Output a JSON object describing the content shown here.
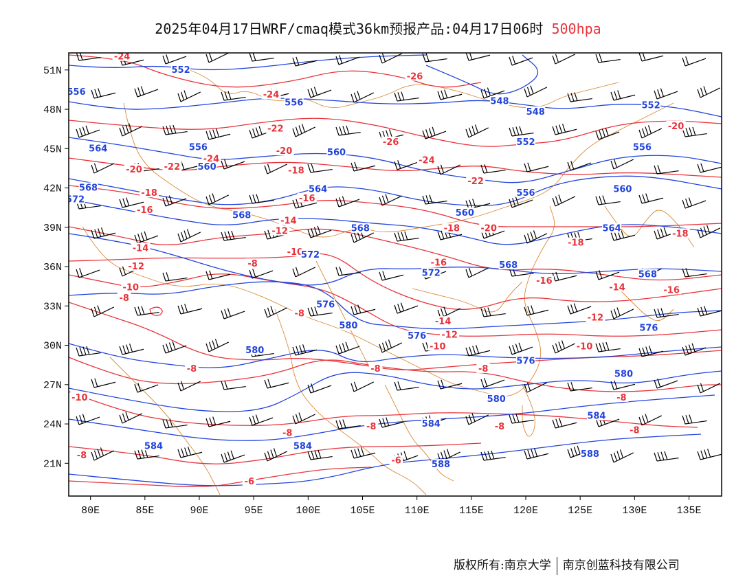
{
  "title": {
    "text": "2025年04月17日WRF/cmaq模式36km预报产品:04月17日06时",
    "level": "500hpa"
  },
  "axes": {
    "lat_ticks": [
      "51N",
      "48N",
      "45N",
      "42N",
      "39N",
      "36N",
      "33N",
      "30N",
      "27N",
      "24N",
      "21N"
    ],
    "lat_values": [
      51,
      48,
      45,
      42,
      39,
      36,
      33,
      30,
      27,
      24,
      21
    ],
    "lon_ticks": [
      "80E",
      "85E",
      "90E",
      "95E",
      "100E",
      "105E",
      "110E",
      "115E",
      "120E",
      "125E",
      "130E",
      "135E"
    ],
    "lon_values": [
      80,
      85,
      90,
      95,
      100,
      105,
      110,
      115,
      120,
      125,
      130,
      135
    ],
    "lon_range": [
      78,
      138
    ],
    "lat_range": [
      18.5,
      52.3
    ]
  },
  "colors": {
    "height_contour": "#2244dd",
    "temperature_contour": "#e8333a",
    "borders": "#d98b3a",
    "wind_barb": "#000000"
  },
  "height_labels": [
    {
      "text": "552",
      "lon": 88.3,
      "lat": 51.0
    },
    {
      "text": "556",
      "lon": 78.7,
      "lat": 49.3
    },
    {
      "text": "556",
      "lon": 98.7,
      "lat": 48.5
    },
    {
      "text": "548",
      "lon": 117.6,
      "lat": 48.6
    },
    {
      "text": "548",
      "lon": 120.9,
      "lat": 47.8
    },
    {
      "text": "552",
      "lon": 131.5,
      "lat": 48.3
    },
    {
      "text": "564",
      "lon": 80.7,
      "lat": 45.0
    },
    {
      "text": "556",
      "lon": 89.9,
      "lat": 45.1
    },
    {
      "text": "560",
      "lon": 102.6,
      "lat": 44.7
    },
    {
      "text": "552",
      "lon": 120.0,
      "lat": 45.5
    },
    {
      "text": "556",
      "lon": 130.7,
      "lat": 45.1
    },
    {
      "text": "560",
      "lon": 90.7,
      "lat": 43.6
    },
    {
      "text": "568",
      "lon": 79.8,
      "lat": 42.0
    },
    {
      "text": "564",
      "lon": 100.9,
      "lat": 41.9
    },
    {
      "text": "556",
      "lon": 120.0,
      "lat": 41.6
    },
    {
      "text": "560",
      "lon": 128.9,
      "lat": 41.9
    },
    {
      "text": "572",
      "lon": 78.6,
      "lat": 41.1
    },
    {
      "text": "568",
      "lon": 93.9,
      "lat": 39.9
    },
    {
      "text": "568",
      "lon": 104.8,
      "lat": 38.9
    },
    {
      "text": "560",
      "lon": 114.4,
      "lat": 40.1
    },
    {
      "text": "564",
      "lon": 127.9,
      "lat": 38.9
    },
    {
      "text": "572",
      "lon": 100.2,
      "lat": 36.9
    },
    {
      "text": "568",
      "lon": 118.4,
      "lat": 36.1
    },
    {
      "text": "568",
      "lon": 131.2,
      "lat": 35.4
    },
    {
      "text": "572",
      "lon": 111.3,
      "lat": 35.5
    },
    {
      "text": "576",
      "lon": 101.6,
      "lat": 33.1
    },
    {
      "text": "580",
      "lon": 103.7,
      "lat": 31.5
    },
    {
      "text": "576",
      "lon": 110.0,
      "lat": 30.7
    },
    {
      "text": "576",
      "lon": 131.3,
      "lat": 31.3
    },
    {
      "text": "580",
      "lon": 95.1,
      "lat": 29.6
    },
    {
      "text": "576",
      "lon": 120.0,
      "lat": 28.8
    },
    {
      "text": "580",
      "lon": 129.0,
      "lat": 27.8
    },
    {
      "text": "580",
      "lon": 117.3,
      "lat": 25.9
    },
    {
      "text": "584",
      "lon": 111.3,
      "lat": 24.0
    },
    {
      "text": "584",
      "lon": 126.5,
      "lat": 24.6
    },
    {
      "text": "584",
      "lon": 85.8,
      "lat": 22.3
    },
    {
      "text": "584",
      "lon": 99.5,
      "lat": 22.3
    },
    {
      "text": "588",
      "lon": 112.2,
      "lat": 20.9
    },
    {
      "text": "588",
      "lon": 125.9,
      "lat": 21.7
    }
  ],
  "temperature_labels": [
    {
      "text": "-24",
      "lon": 82.9,
      "lat": 52.0
    },
    {
      "text": "-26",
      "lon": 109.8,
      "lat": 50.5
    },
    {
      "text": "-24",
      "lon": 96.6,
      "lat": 49.1
    },
    {
      "text": "-22",
      "lon": 97.0,
      "lat": 46.5
    },
    {
      "text": "-20",
      "lon": 133.8,
      "lat": 46.7
    },
    {
      "text": "-26",
      "lon": 107.6,
      "lat": 45.5
    },
    {
      "text": "-20",
      "lon": 97.8,
      "lat": 44.8
    },
    {
      "text": "-24",
      "lon": 91.1,
      "lat": 44.2
    },
    {
      "text": "-22",
      "lon": 87.5,
      "lat": 43.6
    },
    {
      "text": "-20",
      "lon": 84.0,
      "lat": 43.4
    },
    {
      "text": "-24",
      "lon": 110.9,
      "lat": 44.1
    },
    {
      "text": "-18",
      "lon": 98.9,
      "lat": 43.3
    },
    {
      "text": "-22",
      "lon": 115.4,
      "lat": 42.5
    },
    {
      "text": "-18",
      "lon": 85.4,
      "lat": 41.6
    },
    {
      "text": "-16",
      "lon": 99.9,
      "lat": 41.2
    },
    {
      "text": "-16",
      "lon": 85.0,
      "lat": 40.3
    },
    {
      "text": "-14",
      "lon": 98.2,
      "lat": 39.5
    },
    {
      "text": "-12",
      "lon": 97.4,
      "lat": 38.7
    },
    {
      "text": "-18",
      "lon": 113.2,
      "lat": 38.9
    },
    {
      "text": "-20",
      "lon": 116.6,
      "lat": 38.9
    },
    {
      "text": "-18",
      "lon": 134.2,
      "lat": 38.5
    },
    {
      "text": "-14",
      "lon": 84.6,
      "lat": 37.4
    },
    {
      "text": "-10",
      "lon": 98.8,
      "lat": 37.1
    },
    {
      "text": "-18",
      "lon": 124.6,
      "lat": 37.8
    },
    {
      "text": "-12",
      "lon": 84.2,
      "lat": 36.0
    },
    {
      "text": "-8",
      "lon": 94.9,
      "lat": 36.2
    },
    {
      "text": "-16",
      "lon": 112.0,
      "lat": 36.3
    },
    {
      "text": "-16",
      "lon": 121.7,
      "lat": 34.9
    },
    {
      "text": "-14",
      "lon": 128.4,
      "lat": 34.4
    },
    {
      "text": "-16",
      "lon": 133.4,
      "lat": 34.2
    },
    {
      "text": "-10",
      "lon": 83.7,
      "lat": 34.4
    },
    {
      "text": "-8",
      "lon": 83.1,
      "lat": 33.6
    },
    {
      "text": "-8",
      "lon": 99.2,
      "lat": 32.4
    },
    {
      "text": "-14",
      "lon": 112.4,
      "lat": 31.8
    },
    {
      "text": "-12",
      "lon": 126.4,
      "lat": 32.1
    },
    {
      "text": "-12",
      "lon": 113.0,
      "lat": 30.8
    },
    {
      "text": "-10",
      "lon": 111.9,
      "lat": 29.9
    },
    {
      "text": "-10",
      "lon": 125.4,
      "lat": 29.9
    },
    {
      "text": "-8",
      "lon": 89.3,
      "lat": 28.2
    },
    {
      "text": "-8",
      "lon": 106.2,
      "lat": 28.2
    },
    {
      "text": "-8",
      "lon": 116.1,
      "lat": 28.2
    },
    {
      "text": "-10",
      "lon": 79.0,
      "lat": 26.0
    },
    {
      "text": "-8",
      "lon": 128.8,
      "lat": 26.0
    },
    {
      "text": "-8",
      "lon": 98.1,
      "lat": 23.3
    },
    {
      "text": "-8",
      "lon": 105.8,
      "lat": 23.8
    },
    {
      "text": "-8",
      "lon": 117.6,
      "lat": 23.8
    },
    {
      "text": "-8",
      "lon": 130.0,
      "lat": 23.5
    },
    {
      "text": "-8",
      "lon": 79.2,
      "lat": 21.6
    },
    {
      "text": "-6",
      "lon": 108.1,
      "lat": 21.2
    },
    {
      "text": "-6",
      "lon": 94.6,
      "lat": 19.6
    }
  ],
  "footer": {
    "left": "版权所有:南京大学",
    "right": "南京创蓝科技有限公司"
  }
}
